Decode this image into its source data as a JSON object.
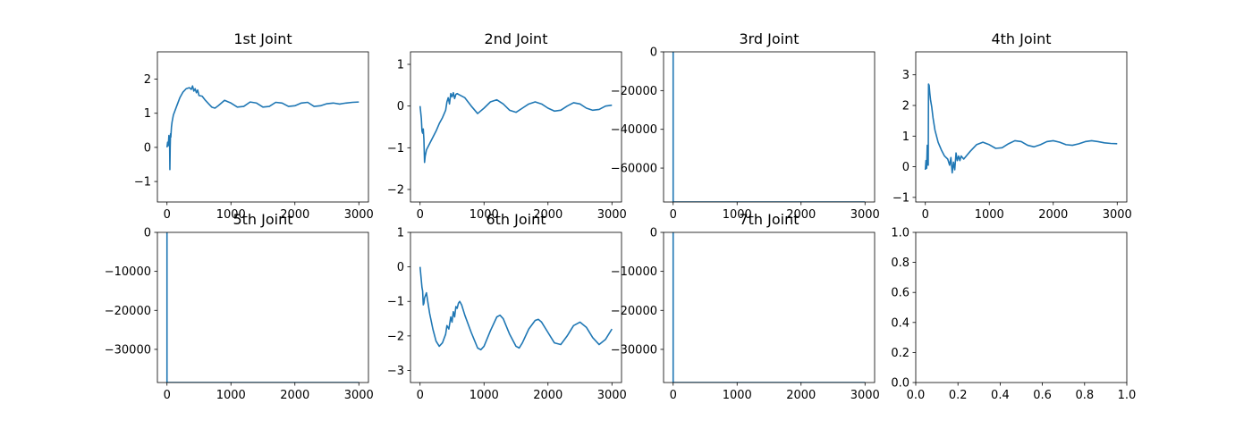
{
  "chart_data": [
    {
      "type": "line",
      "title": "1st Joint",
      "xlim": [
        -150,
        3150
      ],
      "ylim": [
        -1.6,
        2.8
      ],
      "xticks": [
        0,
        1000,
        2000,
        3000
      ],
      "yticks": [
        -1,
        0,
        1,
        2
      ],
      "series": [
        {
          "color": "#1f77b4",
          "x": [
            0,
            10,
            20,
            30,
            35,
            40,
            45,
            50,
            55,
            60,
            70,
            80,
            100,
            150,
            200,
            250,
            300,
            350,
            380,
            400,
            420,
            440,
            460,
            480,
            500,
            550,
            600,
            650,
            700,
            750,
            800,
            900,
            1000,
            1100,
            1200,
            1300,
            1400,
            1500,
            1600,
            1700,
            1800,
            1900,
            2000,
            2100,
            2200,
            2300,
            2400,
            2500,
            2600,
            2700,
            2800,
            2900,
            3000
          ],
          "y": [
            0.0,
            0.15,
            0.05,
            0.35,
            0.2,
            0.3,
            -0.65,
            0.0,
            0.4,
            0.3,
            0.6,
            0.75,
            0.95,
            1.2,
            1.45,
            1.62,
            1.72,
            1.75,
            1.7,
            1.8,
            1.65,
            1.72,
            1.6,
            1.68,
            1.52,
            1.5,
            1.38,
            1.28,
            1.18,
            1.15,
            1.22,
            1.38,
            1.3,
            1.18,
            1.2,
            1.33,
            1.3,
            1.18,
            1.2,
            1.32,
            1.3,
            1.2,
            1.22,
            1.3,
            1.32,
            1.2,
            1.22,
            1.28,
            1.3,
            1.27,
            1.3,
            1.32,
            1.33
          ]
        }
      ]
    },
    {
      "type": "line",
      "title": "2nd Joint",
      "xlim": [
        -150,
        3150
      ],
      "ylim": [
        -2.3,
        1.3
      ],
      "xticks": [
        0,
        1000,
        2000,
        3000
      ],
      "yticks": [
        -2,
        -1,
        0,
        1
      ],
      "series": [
        {
          "color": "#1f77b4",
          "x": [
            0,
            20,
            30,
            40,
            50,
            60,
            70,
            80,
            100,
            150,
            200,
            250,
            300,
            350,
            400,
            420,
            440,
            460,
            480,
            500,
            520,
            540,
            560,
            580,
            600,
            700,
            800,
            900,
            1000,
            1100,
            1200,
            1300,
            1400,
            1500,
            1600,
            1700,
            1800,
            1900,
            2000,
            2100,
            2200,
            2300,
            2400,
            2500,
            2600,
            2700,
            2800,
            2900,
            3000
          ],
          "y": [
            0.0,
            -0.3,
            -0.6,
            -0.65,
            -0.55,
            -0.8,
            -1.35,
            -1.2,
            -1.05,
            -0.9,
            -0.75,
            -0.6,
            -0.42,
            -0.28,
            -0.1,
            0.1,
            0.2,
            0.05,
            0.3,
            0.22,
            0.32,
            0.18,
            0.28,
            0.3,
            0.28,
            0.2,
            0.0,
            -0.18,
            -0.05,
            0.1,
            0.15,
            0.05,
            -0.1,
            -0.15,
            -0.05,
            0.05,
            0.1,
            0.05,
            -0.05,
            -0.12,
            -0.1,
            0.0,
            0.08,
            0.05,
            -0.05,
            -0.1,
            -0.08,
            0.0,
            0.02
          ]
        }
      ]
    },
    {
      "type": "line",
      "title": "3rd Joint",
      "xlim": [
        -150,
        3150
      ],
      "ylim": [
        -77500,
        0
      ],
      "xticks": [
        0,
        1000,
        2000,
        3000
      ],
      "yticks": [
        -60000,
        -40000,
        -20000,
        0
      ],
      "series": [
        {
          "color": "#1f77b4",
          "x": [
            0,
            0,
            5,
            3000
          ],
          "y": [
            0,
            -77500,
            -77500,
            -77500
          ]
        }
      ]
    },
    {
      "type": "line",
      "title": "4th Joint",
      "xlim": [
        -150,
        3150
      ],
      "ylim": [
        -1.15,
        3.75
      ],
      "xticks": [
        0,
        1000,
        2000,
        3000
      ],
      "yticks": [
        -1,
        0,
        1,
        2,
        3
      ],
      "series": [
        {
          "color": "#1f77b4",
          "x": [
            0,
            10,
            20,
            30,
            40,
            45,
            50,
            60,
            70,
            80,
            100,
            120,
            150,
            200,
            250,
            300,
            350,
            380,
            400,
            420,
            440,
            460,
            480,
            500,
            520,
            540,
            560,
            600,
            700,
            800,
            900,
            1000,
            1100,
            1200,
            1300,
            1400,
            1500,
            1600,
            1700,
            1800,
            1900,
            2000,
            2100,
            2200,
            2300,
            2400,
            2500,
            2600,
            2700,
            2800,
            2900,
            3000
          ],
          "y": [
            -0.1,
            0.2,
            -0.05,
            0.7,
            0.15,
            0.05,
            2.7,
            2.65,
            2.4,
            2.2,
            1.95,
            1.6,
            1.2,
            0.8,
            0.55,
            0.35,
            0.25,
            0.05,
            0.3,
            -0.2,
            0.15,
            -0.1,
            0.45,
            0.2,
            0.35,
            0.2,
            0.35,
            0.25,
            0.5,
            0.72,
            0.8,
            0.72,
            0.6,
            0.62,
            0.75,
            0.85,
            0.82,
            0.7,
            0.65,
            0.72,
            0.82,
            0.85,
            0.8,
            0.72,
            0.7,
            0.75,
            0.82,
            0.85,
            0.82,
            0.78,
            0.76,
            0.75
          ]
        }
      ]
    },
    {
      "type": "line",
      "title": "5th Joint",
      "xlim": [
        -150,
        3150
      ],
      "ylim": [
        -38500,
        0
      ],
      "xticks": [
        0,
        1000,
        2000,
        3000
      ],
      "yticks": [
        -30000,
        -20000,
        -10000,
        0
      ],
      "series": [
        {
          "color": "#1f77b4",
          "x": [
            0,
            0,
            5,
            3000
          ],
          "y": [
            0,
            -38500,
            -38500,
            -38500
          ]
        }
      ]
    },
    {
      "type": "line",
      "title": "6th Joint",
      "xlim": [
        -150,
        3150
      ],
      "ylim": [
        -3.35,
        1.0
      ],
      "xticks": [
        0,
        1000,
        2000,
        3000
      ],
      "yticks": [
        -3,
        -2,
        -1,
        0,
        1
      ],
      "series": [
        {
          "color": "#1f77b4",
          "x": [
            0,
            20,
            30,
            40,
            50,
            60,
            70,
            80,
            90,
            100,
            120,
            150,
            200,
            250,
            300,
            350,
            400,
            420,
            450,
            480,
            500,
            520,
            540,
            560,
            580,
            600,
            620,
            650,
            700,
            800,
            900,
            950,
            1000,
            1100,
            1200,
            1250,
            1300,
            1400,
            1500,
            1550,
            1600,
            1700,
            1800,
            1850,
            1900,
            2000,
            2100,
            2200,
            2300,
            2400,
            2500,
            2600,
            2700,
            2800,
            2900,
            3000
          ],
          "y": [
            0.0,
            -0.4,
            -0.6,
            -0.7,
            -1.1,
            -1.05,
            -0.9,
            -0.85,
            -0.8,
            -0.75,
            -1.0,
            -1.35,
            -1.8,
            -2.15,
            -2.3,
            -2.2,
            -1.95,
            -1.7,
            -1.8,
            -1.45,
            -1.6,
            -1.3,
            -1.45,
            -1.15,
            -1.2,
            -1.05,
            -1.0,
            -1.1,
            -1.4,
            -1.9,
            -2.35,
            -2.4,
            -2.3,
            -1.85,
            -1.45,
            -1.4,
            -1.5,
            -1.95,
            -2.3,
            -2.35,
            -2.2,
            -1.8,
            -1.55,
            -1.52,
            -1.6,
            -1.9,
            -2.2,
            -2.25,
            -2.0,
            -1.7,
            -1.6,
            -1.75,
            -2.05,
            -2.25,
            -2.1,
            -1.8
          ]
        }
      ]
    },
    {
      "type": "line",
      "title": "7th Joint",
      "xlim": [
        -150,
        3150
      ],
      "ylim": [
        -38500,
        0
      ],
      "xticks": [
        0,
        1000,
        2000,
        3000
      ],
      "yticks": [
        -30000,
        -20000,
        -10000,
        0
      ],
      "series": [
        {
          "color": "#1f77b4",
          "x": [
            0,
            0,
            5,
            3000
          ],
          "y": [
            0,
            -38500,
            -38500,
            -38500
          ]
        }
      ]
    },
    {
      "type": "line",
      "title": "",
      "xlim": [
        0,
        1
      ],
      "ylim": [
        0,
        1
      ],
      "xticks": [
        0.0,
        0.2,
        0.4,
        0.6,
        0.8,
        1.0
      ],
      "yticks": [
        0.0,
        0.2,
        0.4,
        0.6,
        0.8,
        1.0
      ],
      "xtick_labels": [
        "0.0",
        "0.2",
        "0.4",
        "0.6",
        "0.8",
        "1.0"
      ],
      "ytick_labels": [
        "0.0",
        "0.2",
        "0.4",
        "0.6",
        "0.8",
        "1.0"
      ],
      "series": []
    }
  ]
}
